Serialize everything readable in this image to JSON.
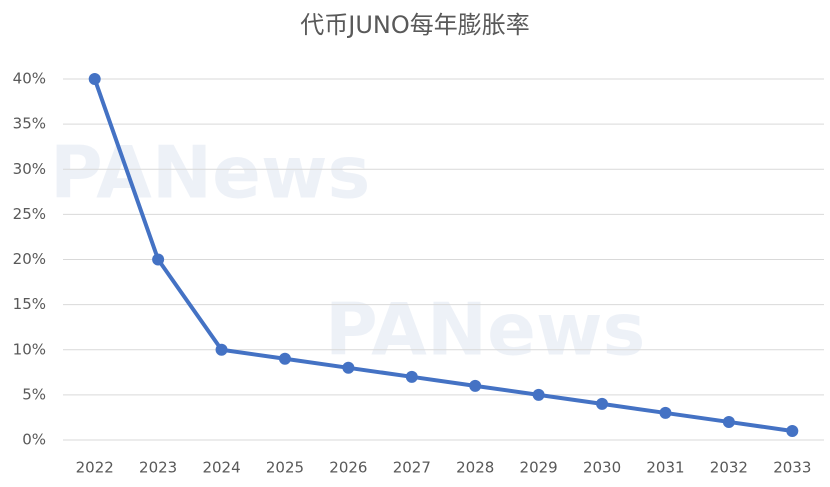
{
  "chart_data": {
    "type": "line",
    "title": "代币JUNO每年膨胀率",
    "watermark": "PANews",
    "categories": [
      "2022",
      "2023",
      "2024",
      "2025",
      "2026",
      "2027",
      "2028",
      "2029",
      "2030",
      "2031",
      "2032",
      "2033"
    ],
    "series": [
      {
        "name": "膨胀率",
        "color": "#4472c4",
        "values": [
          40,
          20,
          10,
          9,
          8,
          7,
          6,
          5,
          4,
          3,
          2,
          1
        ]
      }
    ],
    "ylim": [
      0,
      40
    ],
    "yticks": [
      {
        "value": 0,
        "label": "0%"
      },
      {
        "value": 5,
        "label": "5%"
      },
      {
        "value": 10,
        "label": "10%"
      },
      {
        "value": 15,
        "label": "15%"
      },
      {
        "value": 20,
        "label": "20%"
      },
      {
        "value": 25,
        "label": "25%"
      },
      {
        "value": 30,
        "label": "30%"
      },
      {
        "value": 35,
        "label": "35%"
      },
      {
        "value": 40,
        "label": "40%"
      }
    ],
    "grid": true,
    "legend": false
  }
}
